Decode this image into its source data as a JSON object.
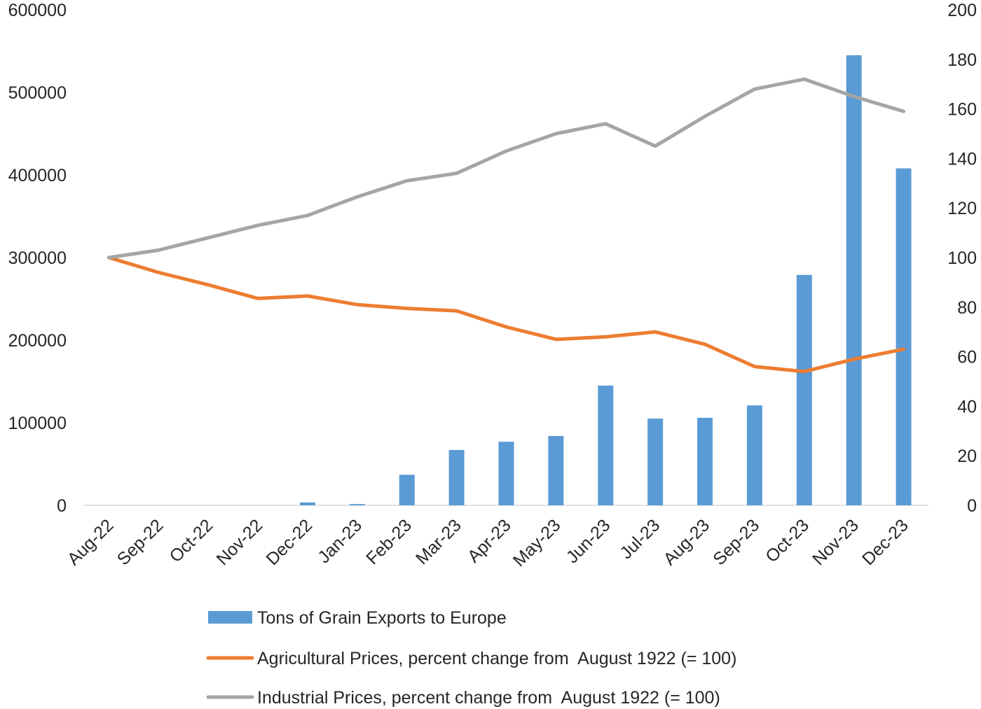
{
  "chart_data": {
    "type": "bar+line",
    "title": "",
    "categories": [
      "Aug-22",
      "Sep-22",
      "Oct-22",
      "Nov-22",
      "Dec-22",
      "Jan-23",
      "Feb-23",
      "Mar-23",
      "Apr-23",
      "May-23",
      "Jun-23",
      "Jul-23",
      "Aug-23",
      "Sep-23",
      "Oct-23",
      "Nov-23",
      "Dec-23"
    ],
    "left_axis": {
      "min": 0,
      "max": 600000,
      "step": 100000,
      "ticks": [
        "0",
        "100000",
        "200000",
        "300000",
        "400000",
        "500000",
        "600000"
      ]
    },
    "right_axis": {
      "min": 0,
      "max": 200,
      "step": 20,
      "ticks": [
        "0",
        "20",
        "40",
        "60",
        "80",
        "100",
        "120",
        "140",
        "160",
        "180",
        "200"
      ]
    },
    "series": [
      {
        "name": "Tons of Grain Exports to Europe",
        "kind": "bar",
        "axis": "left",
        "color": "#5b9bd5",
        "values": [
          0,
          0,
          0,
          0,
          3500,
          1500,
          37000,
          67000,
          77000,
          84000,
          145000,
          105000,
          106000,
          121000,
          279000,
          545000,
          408000
        ]
      },
      {
        "name": "Agricultural Prices, percent change from  August 1922 (= 100)",
        "kind": "line",
        "axis": "right",
        "color": "#ed7d31",
        "values": [
          100,
          94,
          89,
          83.5,
          84.5,
          81,
          79.5,
          78.5,
          72,
          67,
          68,
          70,
          65,
          56,
          54,
          59,
          63
        ]
      },
      {
        "name": "Industrial Prices, percent change from  August 1922 (= 100)",
        "kind": "line",
        "axis": "right",
        "color": "#a5a5a5",
        "values": [
          100,
          103,
          108,
          113,
          117,
          124.5,
          131,
          134,
          143,
          150,
          154,
          145,
          157,
          168,
          172,
          165,
          159
        ]
      }
    ],
    "legend_position": "bottom-center",
    "grid": false
  }
}
